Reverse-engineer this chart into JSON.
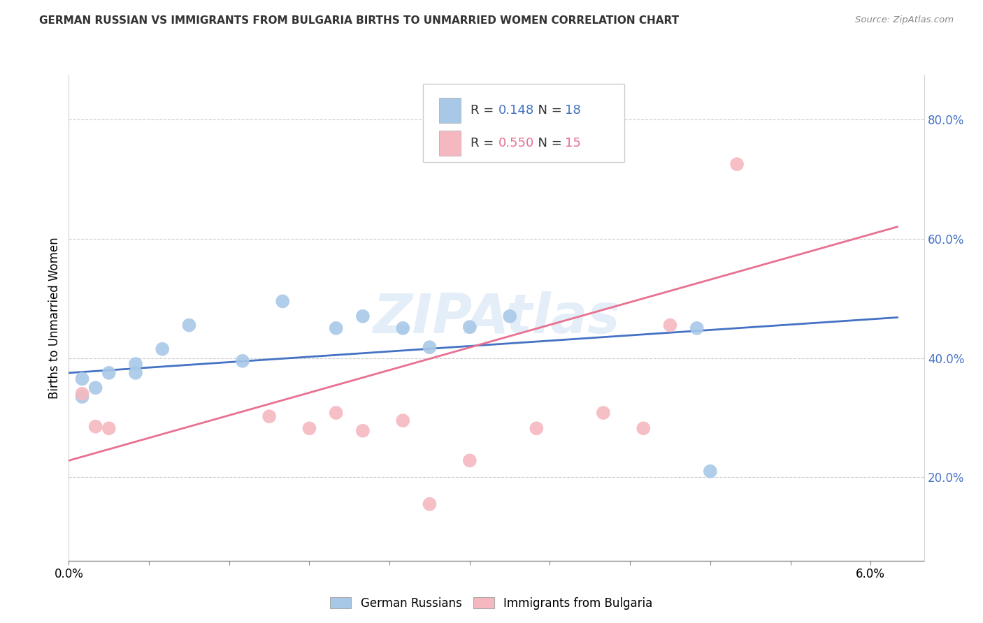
{
  "title": "GERMAN RUSSIAN VS IMMIGRANTS FROM BULGARIA BIRTHS TO UNMARRIED WOMEN CORRELATION CHART",
  "source": "Source: ZipAtlas.com",
  "ylabel": "Births to Unmarried Women",
  "ylabel_right_ticks": [
    "20.0%",
    "40.0%",
    "60.0%",
    "80.0%"
  ],
  "ylabel_right_vals": [
    0.2,
    0.4,
    0.6,
    0.8
  ],
  "watermark": "ZIPAtlas",
  "legend1_r": "0.148",
  "legend1_n": "18",
  "legend2_r": "0.550",
  "legend2_n": "15",
  "blue_color": "#a8c8e8",
  "pink_color": "#f5b8c0",
  "blue_line_color": "#4472c4",
  "pink_line_color": "#e87090",
  "blue_scatter": [
    [
      0.001,
      0.365
    ],
    [
      0.001,
      0.335
    ],
    [
      0.002,
      0.35
    ],
    [
      0.003,
      0.375
    ],
    [
      0.005,
      0.39
    ],
    [
      0.005,
      0.375
    ],
    [
      0.007,
      0.415
    ],
    [
      0.009,
      0.455
    ],
    [
      0.013,
      0.395
    ],
    [
      0.016,
      0.495
    ],
    [
      0.02,
      0.45
    ],
    [
      0.022,
      0.47
    ],
    [
      0.025,
      0.45
    ],
    [
      0.027,
      0.418
    ],
    [
      0.03,
      0.452
    ],
    [
      0.033,
      0.47
    ],
    [
      0.047,
      0.45
    ],
    [
      0.048,
      0.21
    ]
  ],
  "pink_scatter": [
    [
      0.001,
      0.34
    ],
    [
      0.002,
      0.285
    ],
    [
      0.003,
      0.282
    ],
    [
      0.015,
      0.302
    ],
    [
      0.018,
      0.282
    ],
    [
      0.02,
      0.308
    ],
    [
      0.022,
      0.278
    ],
    [
      0.025,
      0.295
    ],
    [
      0.027,
      0.155
    ],
    [
      0.03,
      0.228
    ],
    [
      0.035,
      0.282
    ],
    [
      0.04,
      0.308
    ],
    [
      0.043,
      0.282
    ],
    [
      0.045,
      0.455
    ],
    [
      0.05,
      0.725
    ]
  ],
  "blue_trend_x": [
    0.0,
    0.062
  ],
  "blue_trend_y": [
    0.375,
    0.468
  ],
  "pink_trend_x": [
    0.0,
    0.062
  ],
  "pink_trend_y": [
    0.228,
    0.62
  ],
  "xlim": [
    0.0,
    0.064
  ],
  "ylim": [
    0.06,
    0.875
  ],
  "xticks": [
    0.0,
    0.006,
    0.012,
    0.018,
    0.024,
    0.03,
    0.036,
    0.042,
    0.048,
    0.054,
    0.06
  ]
}
